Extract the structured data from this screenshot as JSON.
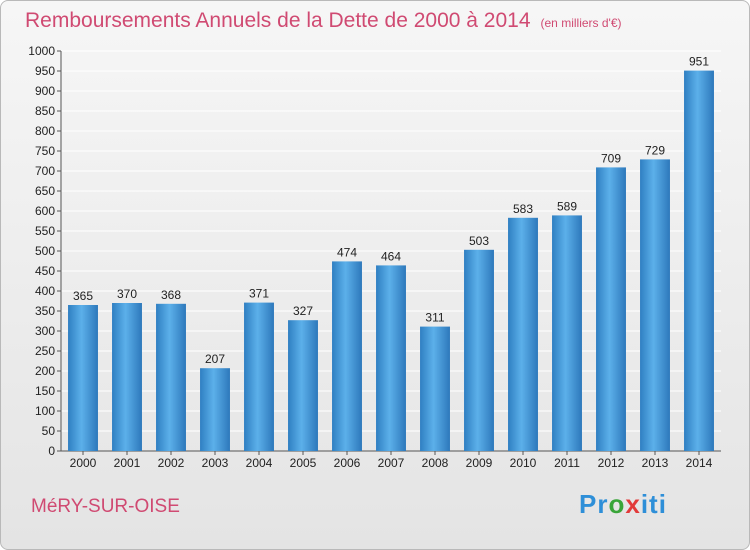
{
  "chart_data": {
    "type": "bar",
    "title": "Remboursements Annuels de la Dette de 2000 à 2014",
    "unit": "(en milliers d'€)",
    "categories": [
      "2000",
      "2001",
      "2002",
      "2003",
      "2004",
      "2005",
      "2006",
      "2007",
      "2008",
      "2009",
      "2010",
      "2011",
      "2012",
      "2013",
      "2014"
    ],
    "values": [
      365,
      370,
      368,
      207,
      371,
      327,
      474,
      464,
      311,
      503,
      583,
      589,
      709,
      729,
      951
    ],
    "ylim": [
      0,
      1000
    ],
    "ytick_step": 50,
    "grid": true,
    "bar_color": "#3f95d6",
    "xlabel": "",
    "ylabel": ""
  },
  "footer": {
    "city": "MéRY-SUR-OISE",
    "logo": "Proxiti"
  },
  "colors": {
    "title": "#d04a72",
    "accent": "#3f95d6"
  }
}
